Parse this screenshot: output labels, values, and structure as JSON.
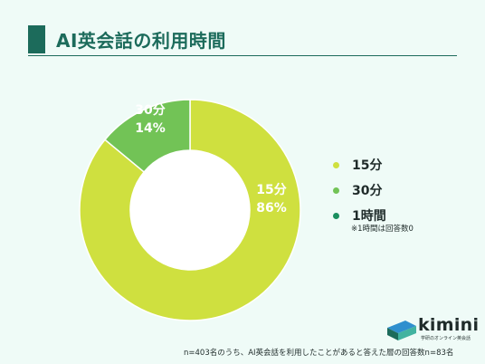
{
  "header": {
    "title": "AI英会話の利用時間"
  },
  "chart_data": {
    "type": "pie",
    "donut": true,
    "categories": [
      "15分",
      "30分",
      "1時間"
    ],
    "values": [
      86,
      14,
      0
    ],
    "value_unit": "%",
    "colors": [
      "#cfe03f",
      "#72c356",
      "#1a8f5f"
    ],
    "slice_labels": [
      {
        "name": "15分",
        "value": "86%"
      },
      {
        "name": "30分",
        "value": "14%"
      }
    ],
    "legend_position": "right",
    "legend_note": "※1時間は回答数0"
  },
  "logo": {
    "name": "kimini",
    "tagline": "学研のオンライン英会話"
  },
  "footnote": "n=403名のうち、AI英会話を利用したことがあると答えた層の回答数n=83名"
}
